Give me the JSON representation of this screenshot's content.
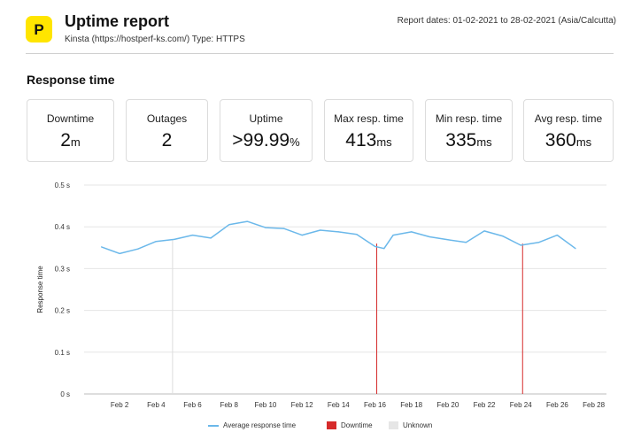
{
  "header": {
    "title": "Uptime report",
    "subtitle": "Kinsta (https://hostperf-ks.com/) Type: HTTPS",
    "report_dates": "Report dates: 01-02-2021 to 28-02-2021 (Asia/Calcutta)",
    "logo_letter": "P",
    "logo_color": "#ffe500"
  },
  "section_title": "Response time",
  "stats": [
    {
      "label": "Downtime",
      "value": "2",
      "unit": "m"
    },
    {
      "label": "Outages",
      "value": "2",
      "unit": ""
    },
    {
      "label": "Uptime",
      "value": ">99.99",
      "unit": "%"
    },
    {
      "label": "Max resp. time",
      "value": "413",
      "unit": "ms"
    },
    {
      "label": "Min resp. time",
      "value": "335",
      "unit": "ms"
    },
    {
      "label": "Avg resp. time",
      "value": "360",
      "unit": "ms"
    }
  ],
  "legend": {
    "avg": "Average response time",
    "downtime": "Downtime",
    "unknown": "Unknown"
  },
  "colors": {
    "line": "#6bb8ea",
    "downtime": "#d62b2b",
    "unknown": "#e6e6e6",
    "grid": "#e5e5e5"
  },
  "chart_data": {
    "type": "line",
    "ylabel": "Response time",
    "ylim": [
      0,
      0.5
    ],
    "y_ticks": [
      "0 s",
      "0.1 s",
      "0.2 s",
      "0.3 s",
      "0.4 s",
      "0.5 s"
    ],
    "x_tick_labels": [
      "Feb 2",
      "Feb 4",
      "Feb 6",
      "Feb 8",
      "Feb 10",
      "Feb 12",
      "Feb 14",
      "Feb 16",
      "Feb 18",
      "Feb 20",
      "Feb 22",
      "Feb 24",
      "Feb 26",
      "Feb 28"
    ],
    "x_ticks_day": [
      2,
      4,
      6,
      8,
      10,
      12,
      14,
      16,
      18,
      20,
      22,
      24,
      26,
      28
    ],
    "series": [
      {
        "name": "Average response time",
        "x_day": [
          1,
          2,
          3,
          4,
          5,
          6,
          7,
          8,
          9,
          10,
          11,
          12,
          13,
          14,
          15,
          16,
          16.5,
          17,
          18,
          19,
          20,
          21,
          22,
          23,
          24,
          25,
          26,
          27,
          28
        ],
        "values": [
          0.352,
          0.336,
          0.347,
          0.365,
          0.37,
          0.38,
          0.373,
          0.405,
          0.413,
          0.398,
          0.396,
          0.38,
          0.392,
          0.388,
          0.382,
          0.353,
          0.348,
          0.38,
          0.388,
          0.376,
          0.369,
          0.363,
          0.39,
          0.378,
          0.356,
          0.363,
          0.38,
          0.348,
          null
        ]
      }
    ],
    "downtime_days": [
      16.1,
      24.1
    ],
    "unknown_days": [
      4.9
    ]
  }
}
